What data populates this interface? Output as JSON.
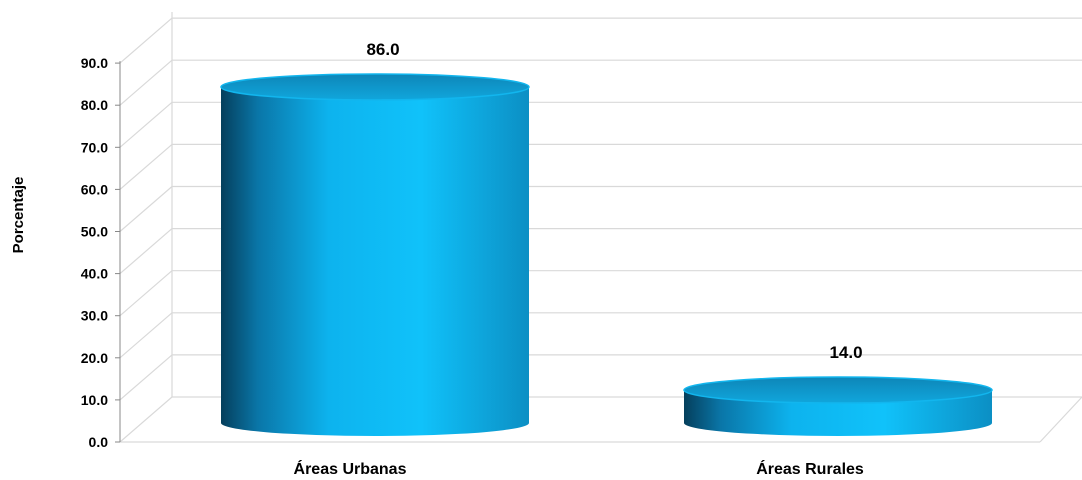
{
  "chart_data": {
    "type": "bar",
    "style": "3d-cylinder",
    "categories": [
      "Áreas Urbanas",
      "Áreas Rurales"
    ],
    "values": [
      86.0,
      14.0
    ],
    "data_labels": [
      "86.0",
      "14.0"
    ],
    "title": "",
    "xlabel": "",
    "ylabel": "Porcentaje",
    "ylim": [
      0,
      90
    ],
    "yticks": [
      "0.0",
      "10.0",
      "20.0",
      "30.0",
      "40.0",
      "50.0",
      "60.0",
      "70.0",
      "80.0",
      "90.0"
    ],
    "grid": true,
    "legend": "none",
    "colors": {
      "bar": "#0DB3EE",
      "bar_dark": "#053F5C",
      "bar_top": "#0F95CB",
      "grid": "#D9D9D9"
    }
  }
}
